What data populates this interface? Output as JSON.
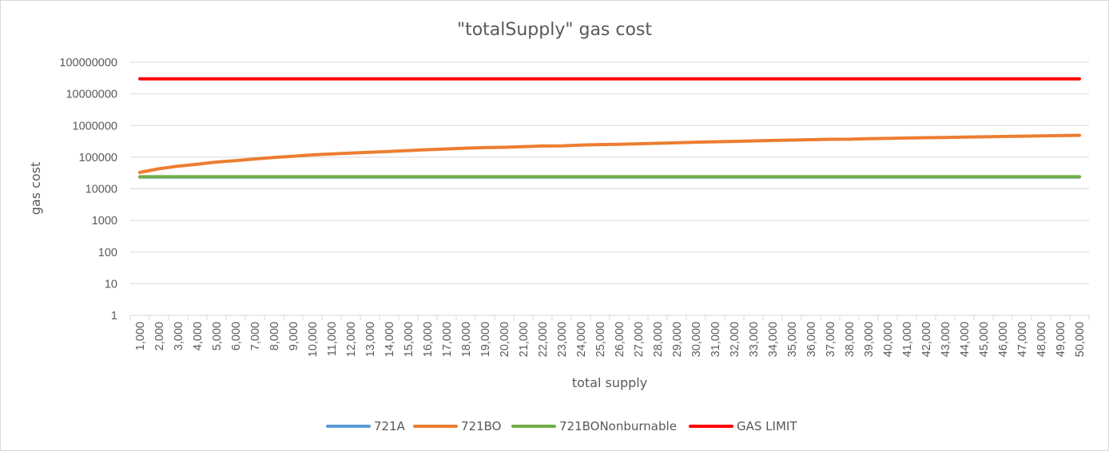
{
  "chart_data": {
    "type": "line",
    "title": "\"totalSupply\" gas cost",
    "xlabel": "total supply",
    "ylabel": "gas cost",
    "y_scale": "log",
    "ylim": [
      1,
      100000000
    ],
    "y_ticks": [
      "1",
      "10",
      "100",
      "1000",
      "10000",
      "100000",
      "1000000",
      "10000000",
      "100000000"
    ],
    "grid": "horizontal",
    "legend_position": "bottom",
    "categories": [
      "1,000",
      "2,000",
      "3,000",
      "4,000",
      "5,000",
      "6,000",
      "7,000",
      "8,000",
      "9,000",
      "10,000",
      "11,000",
      "12,000",
      "13,000",
      "14,000",
      "15,000",
      "16,000",
      "17,000",
      "18,000",
      "19,000",
      "20,000",
      "21,000",
      "22,000",
      "23,000",
      "24,000",
      "25,000",
      "26,000",
      "27,000",
      "28,000",
      "29,000",
      "30,000",
      "31,000",
      "32,000",
      "33,000",
      "34,000",
      "35,000",
      "36,000",
      "37,000",
      "38,000",
      "39,000",
      "40,000",
      "41,000",
      "42,000",
      "43,000",
      "44,000",
      "45,000",
      "46,000",
      "47,000",
      "48,000",
      "49,000",
      "50,000"
    ],
    "series": [
      {
        "name": "721A",
        "color": "#5b9bd5",
        "values": [
          23500,
          23500,
          23500,
          23500,
          23500,
          23500,
          23500,
          23500,
          23500,
          23500,
          23500,
          23500,
          23500,
          23500,
          23500,
          23500,
          23500,
          23500,
          23500,
          23500,
          23500,
          23500,
          23500,
          23500,
          23500,
          23500,
          23500,
          23500,
          23500,
          23500,
          23500,
          23500,
          23500,
          23500,
          23500,
          23500,
          23500,
          23500,
          23500,
          23500,
          23500,
          23500,
          23500,
          23500,
          23500,
          23500,
          23500,
          23500,
          23500,
          23500
        ]
      },
      {
        "name": "721BO",
        "color": "#ed7d31",
        "values": [
          33000,
          43000,
          52000,
          60000,
          70000,
          78000,
          88000,
          98000,
          107000,
          118000,
          126000,
          135000,
          143000,
          152000,
          162000,
          172000,
          182000,
          192000,
          200000,
          205000,
          215000,
          225000,
          228000,
          240000,
          250000,
          255000,
          265000,
          275000,
          285000,
          298000,
          306000,
          316000,
          326000,
          336000,
          346000,
          356000,
          366000,
          370000,
          385000,
          392000,
          402000,
          412000,
          418000,
          430000,
          440000,
          450000,
          460000,
          470000,
          480000,
          490000
        ]
      },
      {
        "name": "721BONonburnable",
        "color": "#70ad47",
        "values": [
          24000,
          24000,
          24000,
          24000,
          24000,
          24000,
          24000,
          24000,
          24000,
          24000,
          24000,
          24000,
          24000,
          24000,
          24000,
          24000,
          24000,
          24000,
          24000,
          24000,
          24000,
          24000,
          24000,
          24000,
          24000,
          24000,
          24000,
          24000,
          24000,
          24000,
          24000,
          24000,
          24000,
          24000,
          24000,
          24000,
          24000,
          24000,
          24000,
          24000,
          24000,
          24000,
          24000,
          24000,
          24000,
          24000,
          24000,
          24000,
          24000,
          24000
        ]
      },
      {
        "name": "GAS LIMIT",
        "color": "#ff0000",
        "values": [
          30000000,
          30000000,
          30000000,
          30000000,
          30000000,
          30000000,
          30000000,
          30000000,
          30000000,
          30000000,
          30000000,
          30000000,
          30000000,
          30000000,
          30000000,
          30000000,
          30000000,
          30000000,
          30000000,
          30000000,
          30000000,
          30000000,
          30000000,
          30000000,
          30000000,
          30000000,
          30000000,
          30000000,
          30000000,
          30000000,
          30000000,
          30000000,
          30000000,
          30000000,
          30000000,
          30000000,
          30000000,
          30000000,
          30000000,
          30000000,
          30000000,
          30000000,
          30000000,
          30000000,
          30000000,
          30000000,
          30000000,
          30000000,
          30000000,
          30000000
        ]
      }
    ]
  }
}
